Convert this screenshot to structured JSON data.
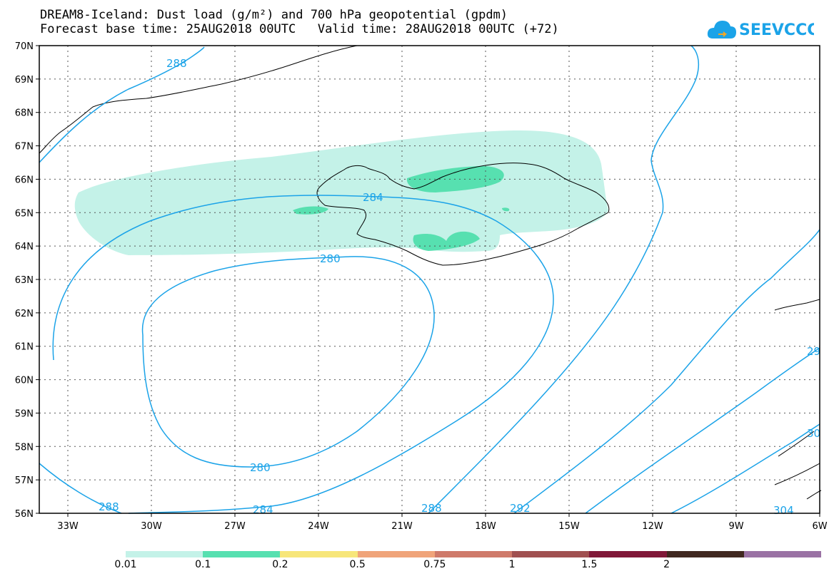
{
  "title": {
    "line1": "DREAM8-Iceland: Dust load (g/m²) and 700 hPa geopotential (gpdm)",
    "line2": "Forecast base time: 25AUG2018 00UTC   Valid time: 28AUG2018 00UTC (+72)"
  },
  "logo": {
    "text": "SEEVCCC",
    "icon": "cloud-icon"
  },
  "axes": {
    "lat_labels": [
      "70N",
      "69N",
      "68N",
      "67N",
      "66N",
      "65N",
      "64N",
      "63N",
      "62N",
      "61N",
      "60N",
      "59N",
      "58N",
      "57N",
      "56N"
    ],
    "lon_labels": [
      "33W",
      "30W",
      "27W",
      "24W",
      "21W",
      "18W",
      "15W",
      "12W",
      "9W",
      "6W"
    ]
  },
  "contours": {
    "labels": [
      "288",
      "284",
      "280",
      "280",
      "284",
      "288",
      "292",
      "304",
      "29",
      "30",
      "288"
    ],
    "color": "#1ba3e8"
  },
  "legend": {
    "labels": [
      "0.01",
      "0.1",
      "0.2",
      "0.5",
      "0.75",
      "1",
      "1.5",
      "2"
    ],
    "colors": [
      "#c4f2e8",
      "#57e0b0",
      "#f7e67a",
      "#f0a47a",
      "#cf7a6a",
      "#a05050",
      "#801838",
      "#402820",
      "#9a72a4"
    ]
  }
}
